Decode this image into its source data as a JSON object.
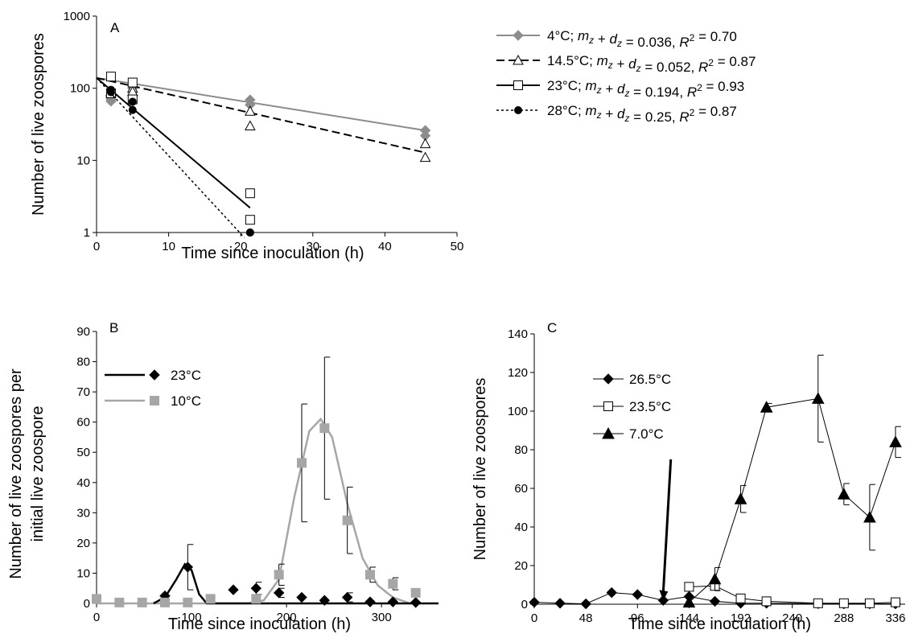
{
  "chart_data": [
    {
      "panel": "A",
      "type": "scatter",
      "xlabel": "Time since inoculation (h)",
      "ylabel": "Number of live zoospores",
      "xlim": [
        0,
        50
      ],
      "ylim": [
        1,
        1000
      ],
      "y_scale": "log",
      "x_ticks": [
        "0",
        "10",
        "20",
        "30",
        "40",
        "50"
      ],
      "y_ticks": [
        "1",
        "10",
        "100",
        "1000"
      ],
      "legend_position": "top-right",
      "series": [
        {
          "name": "4°C; m_z + d_z = 0.036, R² = 0.70",
          "label_temp": "4°C;",
          "label_r2": "0.036,",
          "label_rsq": "0.70",
          "color": "#8c8c8c",
          "marker": "diamond-filled",
          "line": "solid",
          "points": [
            [
              2,
              66
            ],
            [
              2,
              70
            ],
            [
              5,
              112
            ],
            [
              5,
              100
            ],
            [
              21.3,
              69
            ],
            [
              21.3,
              59
            ],
            [
              45.6,
              26
            ],
            [
              45.6,
              22
            ]
          ],
          "fit": [
            [
              0,
              139
            ],
            [
              45.6,
              26
            ]
          ]
        },
        {
          "name": "14.5°C; m_z + d_z = 0.052, R² = 0.87",
          "label_temp": "14.5°C;",
          "label_r2": "0.052,",
          "label_rsq": "0.87",
          "color": "#000000",
          "marker": "triangle-open",
          "line": "dashed",
          "points": [
            [
              2,
              85
            ],
            [
              2,
              90
            ],
            [
              5,
              100
            ],
            [
              5,
              90
            ],
            [
              21.3,
              48
            ],
            [
              21.3,
              30
            ],
            [
              45.6,
              17
            ],
            [
              45.6,
              11
            ]
          ],
          "fit": [
            [
              0,
              139
            ],
            [
              45.6,
              12.8
            ]
          ]
        },
        {
          "name": "23°C; m_z + d_z = 0.194, R² = 0.93",
          "label_temp": "23°C;",
          "label_r2": "0.194,",
          "label_rsq": "0.93",
          "color": "#000000",
          "marker": "square-open",
          "line": "solid",
          "points": [
            [
              2,
              145
            ],
            [
              2,
              85
            ],
            [
              5,
              120
            ],
            [
              5,
              70
            ],
            [
              21.3,
              3.5
            ],
            [
              21.3,
              1.5
            ]
          ],
          "fit": [
            [
              0,
              139
            ],
            [
              21.3,
              2.2
            ]
          ]
        },
        {
          "name": "28°C; m_z + d_z = 0.25, R² = 0.87",
          "label_temp": "28°C;",
          "label_r2": "0.25,",
          "label_rsq": "0.87",
          "color": "#000000",
          "marker": "circle-filled",
          "line": "dotted",
          "points": [
            [
              2,
              95
            ],
            [
              2,
              88
            ],
            [
              5,
              65
            ],
            [
              5,
              50
            ],
            [
              21.3,
              1
            ],
            [
              21.3,
              1
            ]
          ],
          "fit": [
            [
              0,
              139
            ],
            [
              20.5,
              0.85
            ]
          ]
        }
      ]
    },
    {
      "panel": "B",
      "type": "line",
      "xlabel": "Time since inoculation (h)",
      "ylabel_line1": "Number of live zoospores per",
      "ylabel_line2": "initial live zoospore",
      "xlim": [
        0,
        360
      ],
      "ylim": [
        0,
        90
      ],
      "x_ticks": [
        "0",
        "100",
        "200",
        "300"
      ],
      "y_ticks": [
        "0",
        "10",
        "20",
        "30",
        "40",
        "50",
        "60",
        "70",
        "80",
        "90"
      ],
      "legend_position": "top-left",
      "series": [
        {
          "name": "23°C",
          "color": "#000000",
          "marker": "diamond",
          "points": [
            [
              72,
              2.5
            ],
            [
              96,
              12
            ],
            [
              144,
              4.5
            ],
            [
              168,
              5
            ],
            [
              192,
              3.5
            ],
            [
              216,
              2
            ],
            [
              240,
              1
            ],
            [
              264,
              2
            ],
            [
              288,
              0.5
            ],
            [
              312,
              0.5
            ],
            [
              336,
              0.3
            ]
          ],
          "errors": [
            [
              96,
              7.5
            ],
            [
              168,
              2
            ],
            [
              192,
              1.5
            ],
            [
              264,
              1.5
            ]
          ],
          "smooth": [
            [
              60,
              0
            ],
            [
              72,
              2
            ],
            [
              84,
              8
            ],
            [
              93,
              13
            ],
            [
              100,
              11
            ],
            [
              108,
              3
            ],
            [
              116,
              0
            ],
            [
              360,
              0
            ]
          ]
        },
        {
          "name": "10°C",
          "color": "#a6a6a6",
          "marker": "square",
          "points": [
            [
              0,
              1.5
            ],
            [
              24,
              0.3
            ],
            [
              48,
              0.3
            ],
            [
              72,
              0.3
            ],
            [
              96,
              0.3
            ],
            [
              120,
              1.5
            ],
            [
              168,
              1.5
            ],
            [
              192,
              9.5
            ],
            [
              216,
              46.5
            ],
            [
              240,
              58
            ],
            [
              264,
              27.5
            ],
            [
              288,
              9.5
            ],
            [
              312,
              6.5
            ],
            [
              336,
              3.5
            ]
          ],
          "errors": [
            [
              192,
              3.5
            ],
            [
              216,
              19.5
            ],
            [
              240,
              23.5
            ],
            [
              264,
              11
            ],
            [
              288,
              2.5
            ],
            [
              312,
              2
            ]
          ],
          "smooth": [
            [
              0,
              0
            ],
            [
              160,
              0
            ],
            [
              176,
              1
            ],
            [
              192,
              8
            ],
            [
              208,
              35
            ],
            [
              224,
              57
            ],
            [
              236,
              61
            ],
            [
              248,
              55
            ],
            [
              264,
              33
            ],
            [
              280,
              15
            ],
            [
              296,
              6
            ],
            [
              312,
              2
            ],
            [
              330,
              0
            ],
            [
              340,
              0
            ]
          ]
        }
      ]
    },
    {
      "panel": "C",
      "type": "line",
      "xlabel": "Time since inoculation (h)",
      "ylabel": "Number of live zoospores",
      "xlim": [
        0,
        345
      ],
      "ylim": [
        0,
        140
      ],
      "x_ticks": [
        "0",
        "48",
        "96",
        "144",
        "192",
        "240",
        "288",
        "336"
      ],
      "y_ticks": [
        "0",
        "20",
        "40",
        "60",
        "80",
        "100",
        "120",
        "140"
      ],
      "legend_position": "left",
      "series": [
        {
          "name": "26.5°C",
          "color": "#000000",
          "marker": "diamond-filled",
          "points": [
            [
              0,
              1
            ],
            [
              24,
              0.5
            ],
            [
              48,
              0.2
            ],
            [
              72,
              6
            ],
            [
              96,
              5
            ],
            [
              120,
              2
            ],
            [
              144,
              4
            ],
            [
              168,
              1.5
            ],
            [
              192,
              0.5
            ],
            [
              216,
              0.5
            ],
            [
              264,
              0.3
            ],
            [
              288,
              0.2
            ],
            [
              312,
              0.2
            ],
            [
              336,
              0.2
            ]
          ]
        },
        {
          "name": "23.5°C",
          "color": "#000000",
          "marker": "square-open",
          "points": [
            [
              144,
              9
            ],
            [
              168,
              9.5
            ],
            [
              192,
              3
            ],
            [
              216,
              1.5
            ],
            [
              264,
              0.5
            ],
            [
              288,
              0.5
            ],
            [
              312,
              0.5
            ],
            [
              336,
              1
            ]
          ]
        },
        {
          "name": "7.0°C",
          "color": "#000000",
          "marker": "triangle-filled",
          "points": [
            [
              144,
              1
            ],
            [
              168,
              13
            ],
            [
              192,
              54.5
            ],
            [
              216,
              102
            ],
            [
              264,
              106.5
            ],
            [
              288,
              57
            ],
            [
              312,
              45
            ],
            [
              336,
              84
            ]
          ],
          "errors": [
            [
              168,
              6
            ],
            [
              192,
              7
            ],
            [
              216,
              2
            ],
            [
              264,
              22.5
            ],
            [
              288,
              5.5
            ],
            [
              312,
              17
            ],
            [
              336,
              8
            ]
          ]
        }
      ],
      "annotation": {
        "type": "arrow",
        "from": [
          127,
          75
        ],
        "to": [
          120,
          2
        ]
      }
    }
  ],
  "panels": {
    "A": {
      "letter": "A"
    },
    "B": {
      "letter": "B"
    },
    "C": {
      "letter": "C"
    }
  },
  "legend_common": {
    "expr_prefix_m": "m",
    "expr_sub_z": "z",
    "expr_plus_d": " + ",
    "expr_d": "d",
    "expr_equals": " = ",
    "expr_r": "R",
    "expr_sup_2": "2",
    "expr_rsq_eq": " = "
  }
}
